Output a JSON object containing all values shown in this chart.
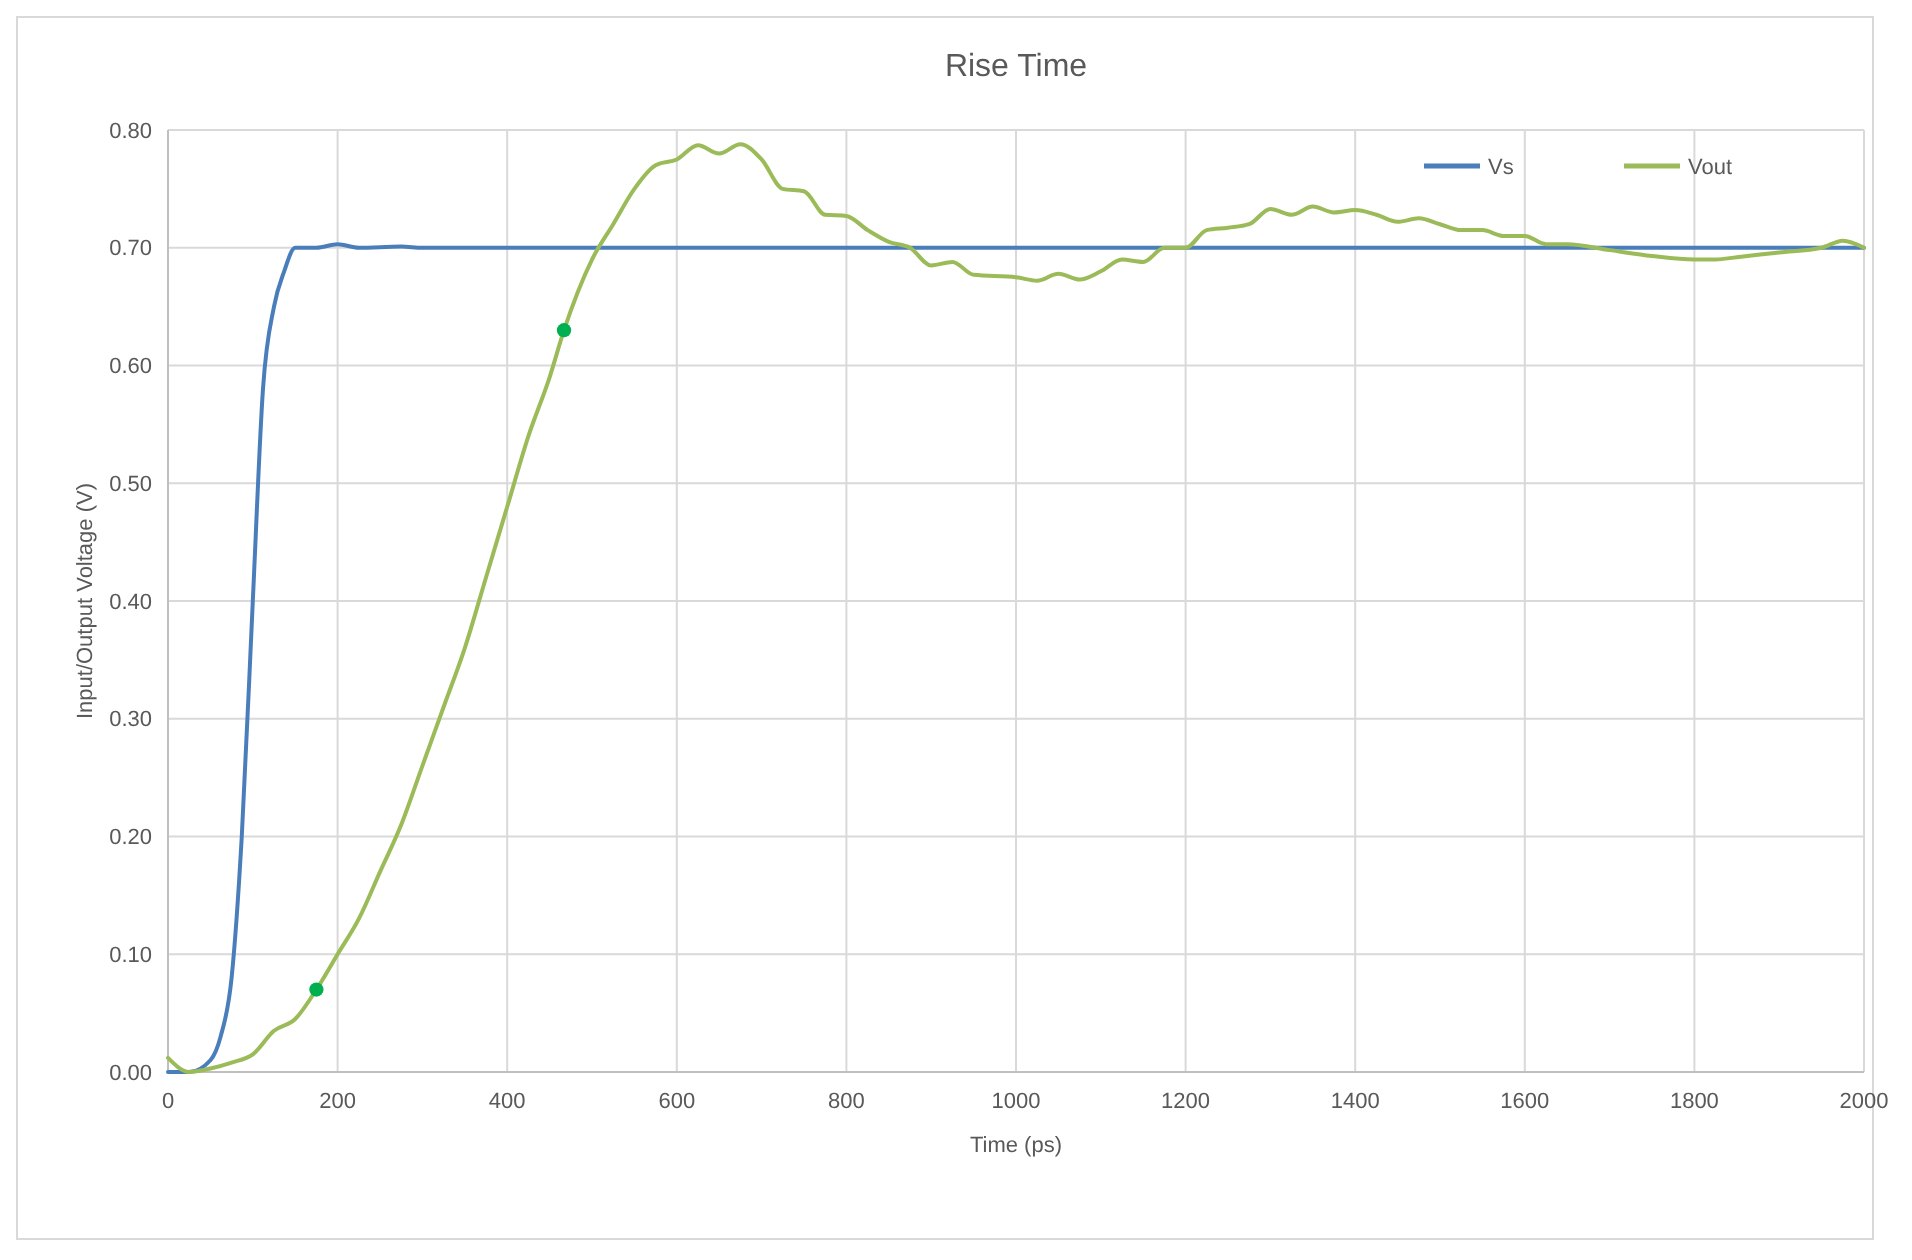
{
  "chart_data": {
    "type": "line",
    "title": "Rise Time",
    "xlabel": "Time (ps)",
    "ylabel": "Input/Output Voltage (V)",
    "xlim": [
      0,
      2000
    ],
    "xticks": [
      0,
      200,
      400,
      600,
      800,
      1000,
      1200,
      1400,
      1600,
      1800,
      2000
    ],
    "ylim": [
      0,
      0.8
    ],
    "yticks": [
      {
        "value": 0,
        "label": "0.00"
      },
      {
        "value": 0.1,
        "label": "0.10"
      },
      {
        "value": 0.2,
        "label": "0.20"
      },
      {
        "value": 0.3,
        "label": "0.30"
      },
      {
        "value": 0.4,
        "label": "0.40"
      },
      {
        "value": 0.5,
        "label": "0.50"
      },
      {
        "value": 0.6,
        "label": "0.60"
      },
      {
        "value": 0.7,
        "label": "0.70"
      },
      {
        "value": 0.8,
        "label": "0.80"
      }
    ],
    "grid": true,
    "legend": "top right",
    "marker": "none",
    "line_style": "solid",
    "series": [
      {
        "name": "Vs",
        "color": "#4a7ebb",
        "x": [
          0,
          25,
          50,
          62,
          75,
          87,
          100,
          112,
          125,
          137,
          150,
          175,
          200,
          225,
          275,
          300,
          400,
          500,
          600,
          800,
          1000,
          1200,
          1400,
          1600,
          1800,
          2000
        ],
        "values": [
          0,
          0,
          0.01,
          0.03,
          0.08,
          0.2,
          0.4,
          0.58,
          0.65,
          0.68,
          0.7,
          0.7,
          0.703,
          0.7,
          0.701,
          0.7,
          0.7,
          0.7,
          0.7,
          0.7,
          0.7,
          0.7,
          0.7,
          0.7,
          0.7,
          0.7
        ]
      },
      {
        "name": "Vout",
        "color": "#9bbb59",
        "x": [
          0,
          25,
          50,
          75,
          100,
          125,
          150,
          175,
          200,
          225,
          250,
          275,
          300,
          325,
          350,
          375,
          400,
          425,
          450,
          467,
          500,
          525,
          550,
          575,
          600,
          625,
          650,
          675,
          700,
          725,
          750,
          775,
          800,
          825,
          850,
          875,
          900,
          925,
          950,
          1000,
          1025,
          1050,
          1075,
          1100,
          1125,
          1150,
          1175,
          1200,
          1225,
          1250,
          1275,
          1300,
          1325,
          1350,
          1375,
          1400,
          1425,
          1450,
          1475,
          1500,
          1525,
          1550,
          1575,
          1600,
          1625,
          1650,
          1700,
          1750,
          1800,
          1825,
          1850,
          1900,
          1950,
          1975,
          2000
        ],
        "values": [
          0.012,
          0,
          0.003,
          0.008,
          0.015,
          0.035,
          0.045,
          0.07,
          0.1,
          0.13,
          0.17,
          0.21,
          0.26,
          0.31,
          0.36,
          0.42,
          0.48,
          0.54,
          0.59,
          0.63,
          0.69,
          0.72,
          0.75,
          0.77,
          0.775,
          0.787,
          0.78,
          0.788,
          0.775,
          0.75,
          0.748,
          0.728,
          0.727,
          0.715,
          0.705,
          0.7,
          0.685,
          0.688,
          0.677,
          0.675,
          0.672,
          0.678,
          0.673,
          0.68,
          0.69,
          0.688,
          0.7,
          0.7,
          0.715,
          0.717,
          0.72,
          0.733,
          0.728,
          0.735,
          0.73,
          0.732,
          0.728,
          0.722,
          0.725,
          0.72,
          0.715,
          0.715,
          0.71,
          0.71,
          0.703,
          0.703,
          0.698,
          0.693,
          0.69,
          0.69,
          0.692,
          0.696,
          0.7,
          0.706,
          0.7
        ]
      },
      {
        "type": "scatter",
        "color": "#00b050",
        "marker": "circle",
        "x": [
          175,
          467
        ],
        "values": [
          0.07,
          0.63
        ]
      }
    ]
  }
}
